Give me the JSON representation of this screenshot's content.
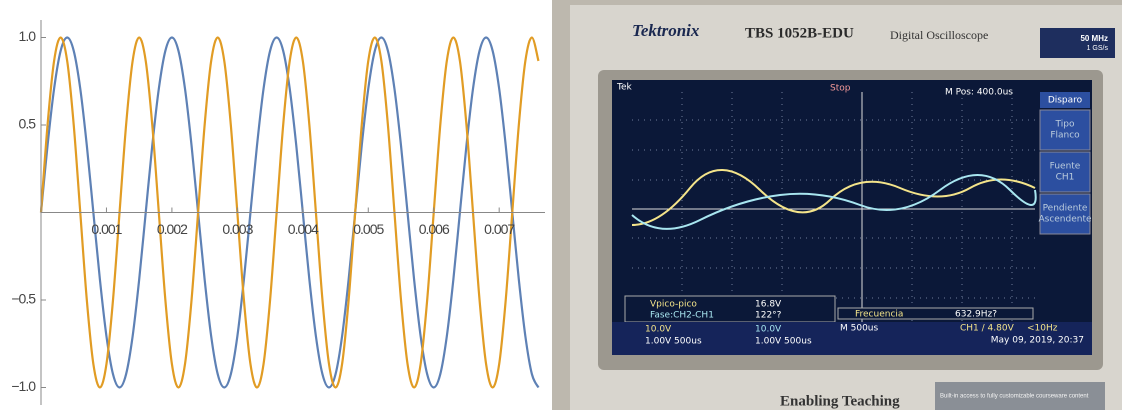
{
  "chart_data": {
    "type": "line",
    "x": [
      0,
      0.0001,
      0.0002,
      0.0003,
      0.0004,
      0.0005,
      0.0006,
      0.0007,
      0.0008,
      0.0009,
      0.001,
      0.0011,
      0.0012,
      0.0013,
      0.0014,
      0.0015,
      0.0016,
      0.0017,
      0.0018,
      0.0019,
      0.002,
      0.0021,
      0.0022,
      0.0023,
      0.0024,
      0.0025,
      0.0026,
      0.0027,
      0.0028,
      0.0029,
      0.003,
      0.0031,
      0.0032,
      0.0033,
      0.0034,
      0.0035,
      0.0036,
      0.0037,
      0.0038,
      0.0039,
      0.004,
      0.0041,
      0.0042,
      0.0043,
      0.0044,
      0.0045,
      0.0046,
      0.0047,
      0.0048,
      0.0049,
      0.005,
      0.0051,
      0.0052,
      0.0053,
      0.0054,
      0.0055,
      0.0056,
      0.0057,
      0.0058,
      0.0059,
      0.006,
      0.0061,
      0.0062,
      0.0063,
      0.0064,
      0.0065,
      0.0066,
      0.0067,
      0.0068,
      0.0069,
      0.007,
      0.0071,
      0.0072,
      0.0073,
      0.0074,
      0.0075,
      0.0076
    ],
    "series": [
      {
        "color": "#5e81b5",
        "values": [
          0,
          0.383,
          0.707,
          0.924,
          1,
          0.924,
          0.707,
          0.383,
          0,
          -0.383,
          -0.707,
          -0.924,
          -1,
          -0.924,
          -0.707,
          -0.383,
          0,
          0.383,
          0.707,
          0.924,
          1,
          0.924,
          0.707,
          0.383,
          0,
          -0.383,
          -0.707,
          -0.924,
          -1,
          -0.924,
          -0.707,
          -0.383,
          0,
          0.383,
          0.707,
          0.924,
          1,
          0.924,
          0.707,
          0.383,
          0,
          -0.383,
          -0.707,
          -0.924,
          -1,
          -0.924,
          -0.707,
          -0.383,
          0,
          0.383,
          0.707,
          0.924,
          1,
          0.924,
          0.707,
          0.383,
          0,
          -0.383,
          -0.707,
          -0.924,
          -1,
          -0.924,
          -0.707,
          -0.383,
          0,
          0.383,
          0.707,
          0.924,
          1,
          0.924,
          0.707,
          0.383,
          0,
          -0.383,
          -0.707,
          -0.924,
          -1
        ]
      },
      {
        "color": "#e19c24",
        "values": [
          0,
          0.5,
          0.866,
          1,
          0.866,
          0.5,
          0,
          -0.5,
          -0.866,
          -1,
          -0.866,
          -0.5,
          0,
          0.5,
          0.866,
          1,
          0.866,
          0.5,
          0,
          -0.5,
          -0.866,
          -1,
          -0.866,
          -0.5,
          0,
          0.5,
          0.866,
          1,
          0.866,
          0.5,
          0,
          -0.5,
          -0.866,
          -1,
          -0.866,
          -0.5,
          0,
          0.5,
          0.866,
          1,
          0.866,
          0.5,
          0,
          -0.5,
          -0.866,
          -1,
          -0.866,
          -0.5,
          0,
          0.5,
          0.866,
          1,
          0.866,
          0.5,
          0,
          -0.5,
          -0.866,
          -1,
          -0.866,
          -0.5,
          0,
          0.5,
          0.866,
          1,
          0.866,
          0.5,
          0,
          -0.5,
          -0.866,
          -1,
          -0.866,
          -0.5,
          0,
          0.5,
          0.866,
          1,
          0.866
        ]
      }
    ],
    "xlim": [
      0,
      0.0077
    ],
    "ylim": [
      -1.1,
      1.1
    ],
    "xticks": [
      0.001,
      0.002,
      0.003,
      0.004,
      0.005,
      0.006,
      0.007
    ],
    "yticks": [
      {
        "value": -1,
        "label": "−1.0"
      },
      {
        "value": -0.5,
        "label": "−0.5"
      },
      0.5,
      {
        "value": 1,
        "label": "1.0"
      }
    ]
  },
  "photo": {
    "brand": "Tektronix",
    "model": "TBS 1052B-EDU",
    "kind": "Digital Oscilloscope",
    "bandwidth": "50 MHz",
    "rate": "1 GS/s",
    "status": "Tek",
    "run": "Stop",
    "mpos": "M Pos: 400.0us",
    "menu": {
      "title": "Disparo",
      "items": [
        [
          "Tipo",
          "Flanco"
        ],
        [
          "Fuente",
          "CH1"
        ],
        [
          "Pendiente",
          "Ascendente"
        ]
      ]
    },
    "meas": {
      "vpp_label": "Vpico-pico",
      "vpp": "16.8V",
      "phase_label": "Fase:CH2-CH1",
      "phase": "122°?",
      "freq_label": "Frecuencia",
      "freq": "632.9Hz?"
    },
    "ch1": "10.0V",
    "ch2": "10.0V",
    "timebase": "M 500us",
    "trigger": "CH1 ∕ 4.80V",
    "trig_freq": "<10Hz",
    "ref1": "1.00V 500us",
    "ref2": "1.00V 500us",
    "date": "May 09, 2019, 20:37",
    "footer": "Enabling Teaching",
    "footer_note": "Built-in access to fully customizable courseware content"
  }
}
